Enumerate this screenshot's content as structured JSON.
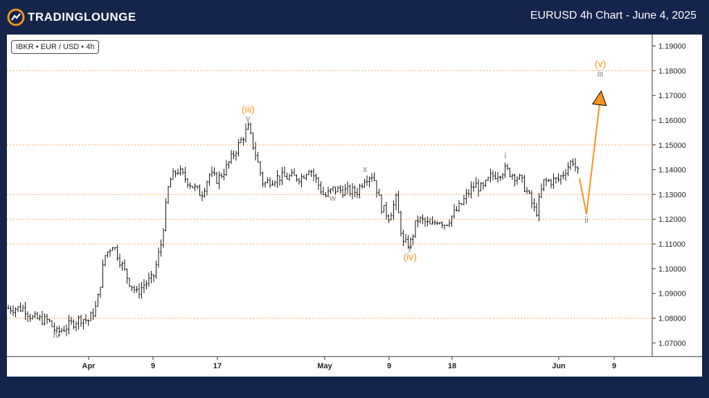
{
  "header": {
    "logo_text": "TRADINGLOUNGE",
    "title": "EURUSD 4h Chart - June 4, 2025"
  },
  "ticker_label": "IBKR • EUR / USD • 4h",
  "colors": {
    "background": "#15244a",
    "accent": "#f7931e",
    "candle": "#000000",
    "wave_gray": "#888888"
  },
  "chart_data": {
    "type": "ohlc",
    "y_ticks": [
      "1.19000",
      "1.18000",
      "1.17000",
      "1.16000",
      "1.15000",
      "1.14000",
      "1.13000",
      "1.12000",
      "1.11000",
      "1.10000",
      "1.09000",
      "1.08000",
      "1.07000"
    ],
    "ylim": [
      1.0645,
      1.1946
    ],
    "x_ticks": [
      "Apr",
      "9",
      "17",
      "May",
      "9",
      "18",
      "Jun",
      "9"
    ],
    "reference_levels": [
      1.18,
      1.15,
      1.13,
      1.12,
      1.11,
      1.08
    ],
    "price_path": [
      {
        "x": "Mar 24",
        "y": 1.084
      },
      {
        "x": "Mar 25",
        "y": 1.08
      },
      {
        "x": "Mar 27",
        "y": 1.079
      },
      {
        "x": "Mar 28",
        "y": 1.074
      },
      {
        "x": "Mar 31",
        "y": 1.08
      },
      {
        "x": "Apr 1",
        "y": 1.079
      },
      {
        "x": "Apr 2",
        "y": 1.085
      },
      {
        "x": "Apr 3",
        "y": 1.105
      },
      {
        "x": "Apr 4",
        "y": 1.11
      },
      {
        "x": "Apr 6",
        "y": 1.095
      },
      {
        "x": "Apr 7",
        "y": 1.09
      },
      {
        "x": "Apr 8",
        "y": 1.094
      },
      {
        "x": "Apr 9",
        "y": 1.096
      },
      {
        "x": "Apr 10",
        "y": 1.11
      },
      {
        "x": "Apr 11",
        "y": 1.135
      },
      {
        "x": "Apr 12",
        "y": 1.14
      },
      {
        "x": "Apr 14",
        "y": 1.133
      },
      {
        "x": "Apr 15",
        "y": 1.13
      },
      {
        "x": "Apr 16",
        "y": 1.138
      },
      {
        "x": "Apr 17",
        "y": 1.136
      },
      {
        "x": "Apr 18",
        "y": 1.14
      },
      {
        "x": "Apr 21",
        "y": 1.157
      },
      {
        "x": "Apr 22",
        "y": 1.146
      },
      {
        "x": "Apr 23",
        "y": 1.134
      },
      {
        "x": "Apr 24",
        "y": 1.136
      },
      {
        "x": "Apr 25",
        "y": 1.137
      },
      {
        "x": "Apr 28",
        "y": 1.137
      },
      {
        "x": "Apr 29",
        "y": 1.141
      },
      {
        "x": "Apr 30",
        "y": 1.135
      },
      {
        "x": "May 1",
        "y": 1.129
      },
      {
        "x": "May 2",
        "y": 1.132
      },
      {
        "x": "May 5",
        "y": 1.131
      },
      {
        "x": "May 6",
        "y": 1.137
      },
      {
        "x": "May 7",
        "y": 1.138
      },
      {
        "x": "May 8",
        "y": 1.125
      },
      {
        "x": "May 9",
        "y": 1.121
      },
      {
        "x": "May 10",
        "y": 1.128
      },
      {
        "x": "May 11",
        "y": 1.11
      },
      {
        "x": "May 12",
        "y": 1.11
      },
      {
        "x": "May 13",
        "y": 1.12
      },
      {
        "x": "May 14",
        "y": 1.119
      },
      {
        "x": "May 15",
        "y": 1.117
      },
      {
        "x": "May 16",
        "y": 1.12
      },
      {
        "x": "May 17",
        "y": 1.118
      },
      {
        "x": "May 19",
        "y": 1.125
      },
      {
        "x": "May 20",
        "y": 1.13
      },
      {
        "x": "May 21",
        "y": 1.134
      },
      {
        "x": "May 22",
        "y": 1.132
      },
      {
        "x": "May 23",
        "y": 1.137
      },
      {
        "x": "May 25",
        "y": 1.14
      },
      {
        "x": "May 26",
        "y": 1.138
      },
      {
        "x": "May 27",
        "y": 1.136
      },
      {
        "x": "May 28",
        "y": 1.13
      },
      {
        "x": "May 29",
        "y": 1.122
      },
      {
        "x": "May 30",
        "y": 1.135
      },
      {
        "x": "Jun 1",
        "y": 1.136
      },
      {
        "x": "Jun 2",
        "y": 1.14
      },
      {
        "x": "Jun 3",
        "y": 1.144
      },
      {
        "x": "Jun 4",
        "y": 1.137
      }
    ],
    "projection": [
      {
        "x": "Jun 4",
        "y": 1.1365
      },
      {
        "x": "Jun 5",
        "y": 1.122
      },
      {
        "x": "Jun 7",
        "y": 1.169
      }
    ],
    "wave_labels": [
      {
        "text": "iv",
        "x": "Mar 28",
        "y": 1.072,
        "color": "gray"
      },
      {
        "text": "(iii)",
        "x": "Apr 21",
        "y": 1.163,
        "color": "orange"
      },
      {
        "text": "v",
        "x": "Apr 21",
        "y": 1.1595,
        "color": "gray"
      },
      {
        "text": "w",
        "x": "May 2",
        "y": 1.1275,
        "color": "gray"
      },
      {
        "text": "x",
        "x": "May 6",
        "y": 1.139,
        "color": "gray"
      },
      {
        "text": "y",
        "x": "May 12",
        "y": 1.1075,
        "color": "gray"
      },
      {
        "text": "(iv)",
        "x": "May 12",
        "y": 1.1035,
        "color": "orange"
      },
      {
        "text": "i",
        "x": "May 25",
        "y": 1.1445,
        "color": "gray"
      },
      {
        "text": "ii",
        "x": "Jun 5",
        "y": 1.1185,
        "color": "gray"
      },
      {
        "text": "iii",
        "x": "Jun 7",
        "y": 1.1775,
        "color": "gray"
      },
      {
        "text": "(v)",
        "x": "Jun 7",
        "y": 1.1815,
        "color": "orange"
      }
    ]
  }
}
